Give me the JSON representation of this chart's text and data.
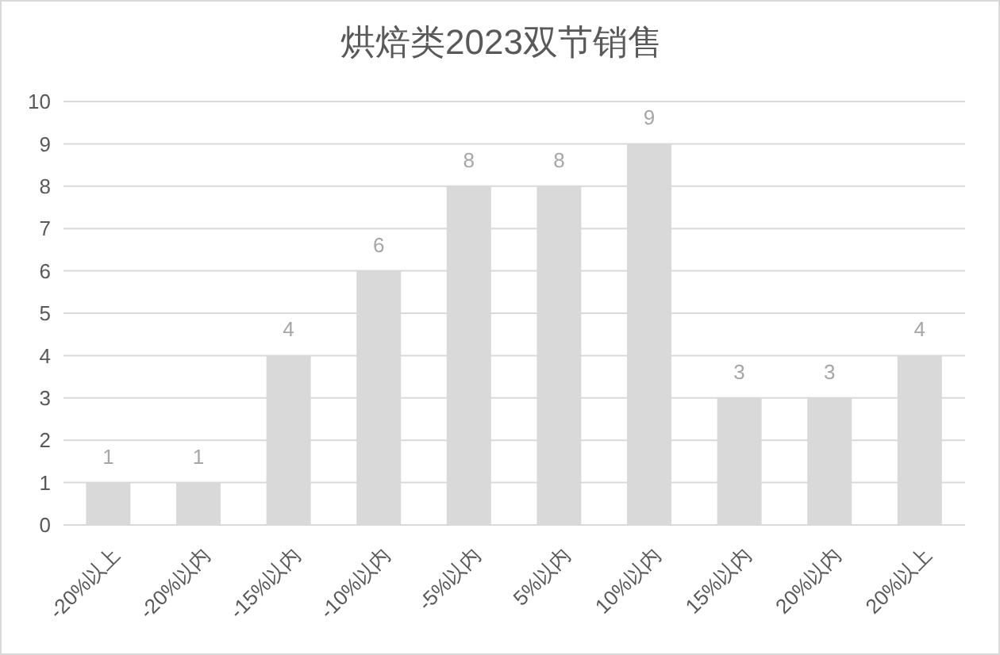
{
  "chart_data": {
    "type": "bar",
    "title": "烘焙类2023双节销售",
    "categories": [
      "-20%以上",
      "-20%以内",
      "-15%以内",
      "-10%以内",
      "-5%以内",
      "5%以内",
      "10%以内",
      "15%以内",
      "20%以内",
      "20%以上"
    ],
    "values": [
      1,
      1,
      4,
      6,
      8,
      8,
      9,
      3,
      3,
      4
    ],
    "color": "#d9d9d9",
    "ylim": [
      0,
      10
    ],
    "yticks": [
      0,
      1,
      2,
      3,
      4,
      5,
      6,
      7,
      8,
      9,
      10
    ],
    "grid": "y",
    "data_labels": true
  }
}
